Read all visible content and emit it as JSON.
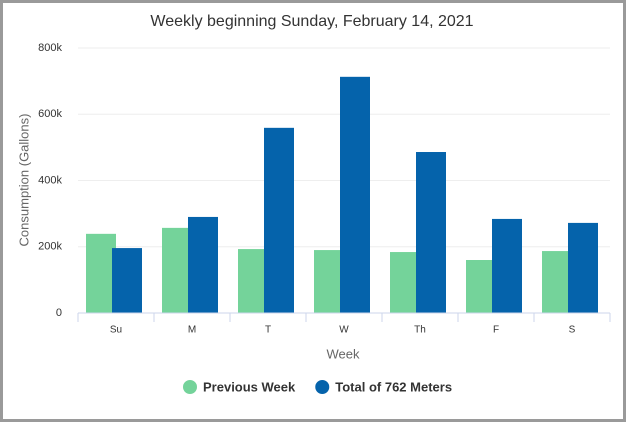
{
  "chart_data": {
    "type": "bar",
    "title": "Weekly beginning Sunday, February 14, 2021",
    "x_label": "Week",
    "y_label": "Consumption (Gallons)",
    "categories": [
      "Su",
      "M",
      "T",
      "W",
      "Th",
      "F",
      "S"
    ],
    "series": [
      {
        "name": "Previous Week",
        "color": "#74d39a",
        "values": [
          239000,
          257000,
          193000,
          190000,
          184000,
          160000,
          187000
        ]
      },
      {
        "name": "Total of 762 Meters",
        "color": "#0563ab",
        "values": [
          196000,
          290000,
          559000,
          713000,
          486000,
          284000,
          272000
        ]
      }
    ],
    "ylim": [
      0,
      800000
    ],
    "yticks": [
      0,
      {
        "value": 200000,
        "label": "200k"
      },
      {
        "value": 400000,
        "label": "400k"
      },
      {
        "value": 600000,
        "label": "600k"
      },
      {
        "value": 800000,
        "label": "800k"
      }
    ],
    "grid": true
  }
}
